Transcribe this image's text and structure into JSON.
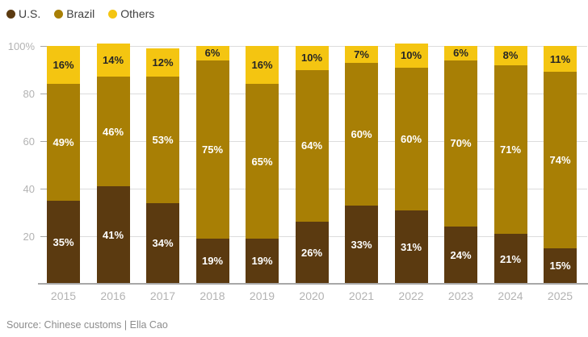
{
  "source": "Source: Chinese customs | Ella Cao",
  "legend": {
    "position": "top-left",
    "items": [
      {
        "label": "U.S.",
        "color": "#5b3a10"
      },
      {
        "label": "Brazil",
        "color": "#a87f05"
      },
      {
        "label": "Others",
        "color": "#f4c511"
      }
    ]
  },
  "colors": {
    "us": "#5b3a10",
    "brazil": "#a87f05",
    "others": "#f4c511",
    "label_on_dark": "#ffffff",
    "label_on_yellow": "#262626",
    "axis_label": "#b3b3b3",
    "gridline": "#dcdcdc",
    "tick": "#a5a5a5",
    "baseline": "#a8a8a8",
    "legend_text": "#3f3f3f",
    "source_text": "#8c8c8c"
  },
  "chart_data": {
    "type": "bar",
    "stacked": true,
    "title": "",
    "xlabel": "",
    "ylabel": "",
    "grid": true,
    "legend_position": "top-left",
    "categories": [
      "2015",
      "2016",
      "2017",
      "2018",
      "2019",
      "2020",
      "2021",
      "2022",
      "2023",
      "2024",
      "2025"
    ],
    "series": [
      {
        "name": "U.S.",
        "color": "#5b3a10",
        "label_color": "#ffffff",
        "values": [
          35,
          41,
          34,
          19,
          19,
          26,
          33,
          31,
          24,
          21,
          15
        ]
      },
      {
        "name": "Brazil",
        "color": "#a87f05",
        "label_color": "#ffffff",
        "values": [
          49,
          46,
          53,
          75,
          65,
          64,
          60,
          60,
          70,
          71,
          74
        ]
      },
      {
        "name": "Others",
        "color": "#f4c511",
        "label_color": "#262626",
        "values": [
          16,
          14,
          12,
          6,
          16,
          10,
          7,
          10,
          6,
          8,
          11
        ]
      }
    ],
    "value_suffix": "%",
    "y_axis": {
      "range": [
        0,
        100
      ],
      "ticks": [
        20,
        40,
        60,
        80,
        100
      ],
      "tick_labels": [
        "20",
        "40",
        "60",
        "80",
        "100%"
      ]
    }
  }
}
